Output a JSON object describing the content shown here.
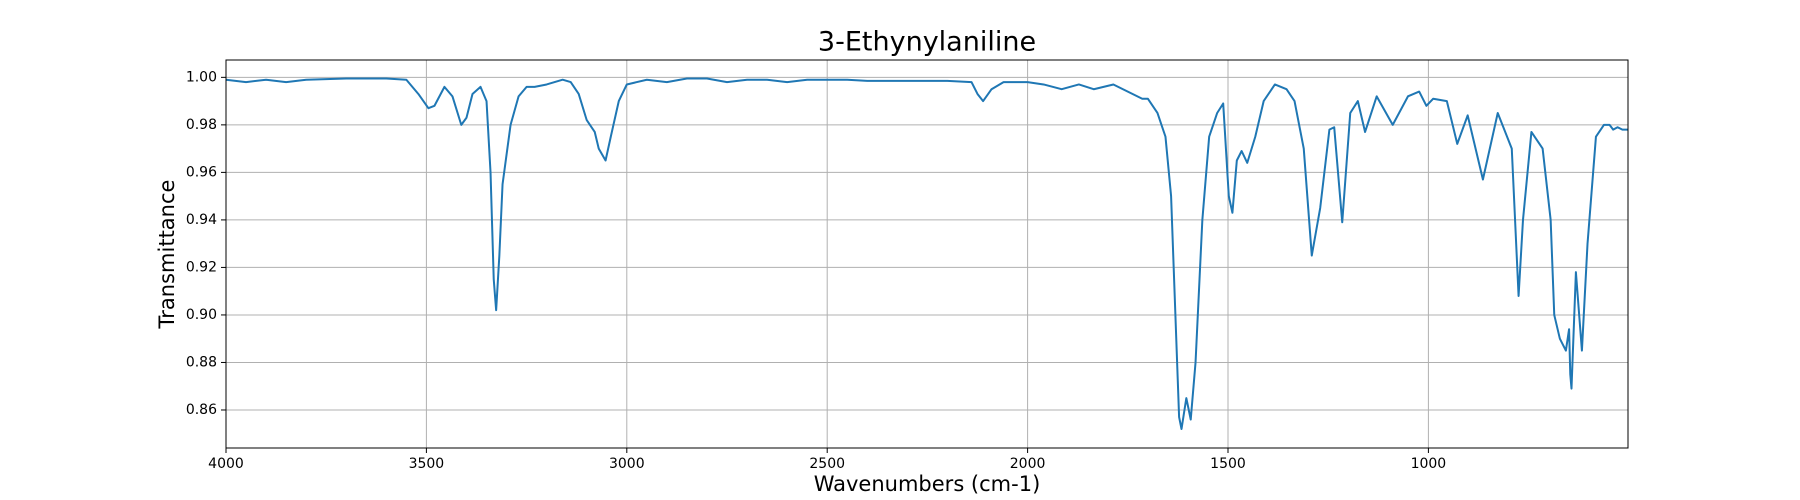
{
  "chart_data": {
    "type": "line",
    "title": "3-Ethynylaniline",
    "x_label": "Wavenumbers (cm-1)",
    "y_label": "Transmittance",
    "color": "#1f77b4",
    "grid": true,
    "xlim": [
      4000,
      502
    ],
    "ylim": [
      0.844,
      1.0073
    ],
    "xticks": [
      4000,
      3500,
      3000,
      2500,
      2000,
      1500,
      1000
    ],
    "yticks": [
      0.86,
      0.88,
      {
        "value": 0.9,
        "label": "0.90"
      },
      0.92,
      0.94,
      0.96,
      0.98,
      {
        "value": 1,
        "label": "1.00"
      }
    ],
    "x": [
      4000,
      3950,
      3900,
      3850,
      3800,
      3700,
      3600,
      3550,
      3520,
      3495,
      3480,
      3455,
      3435,
      3413,
      3400,
      3385,
      3365,
      3350,
      3340,
      3332,
      3326,
      3318,
      3310,
      3290,
      3270,
      3250,
      3230,
      3200,
      3160,
      3140,
      3120,
      3100,
      3080,
      3070,
      3053,
      3040,
      3020,
      3000,
      2950,
      2900,
      2850,
      2800,
      2750,
      2700,
      2650,
      2600,
      2550,
      2500,
      2450,
      2400,
      2300,
      2200,
      2140,
      2125,
      2111,
      2090,
      2060,
      2000,
      1960,
      1915,
      1872,
      1835,
      1786,
      1714,
      1700,
      1676,
      1656,
      1642,
      1622,
      1616,
      1604,
      1593,
      1581,
      1564,
      1547,
      1527,
      1512,
      1498,
      1489,
      1478,
      1466,
      1452,
      1432,
      1411,
      1383,
      1354,
      1334,
      1311,
      1291,
      1270,
      1247,
      1235,
      1215,
      1195,
      1176,
      1158,
      1129,
      1089,
      1051,
      1023,
      1005,
      988,
      954,
      928,
      902,
      864,
      827,
      792,
      775,
      764,
      743,
      715,
      695,
      686,
      672,
      657,
      649,
      646,
      643,
      632,
      617,
      603,
      582,
      562,
      548,
      539,
      528,
      516,
      502
    ],
    "values": [
      0.999,
      0.998,
      0.999,
      0.998,
      0.999,
      0.9995,
      0.9995,
      0.999,
      0.993,
      0.987,
      0.988,
      0.996,
      0.992,
      0.98,
      0.983,
      0.993,
      0.996,
      0.99,
      0.96,
      0.915,
      0.902,
      0.925,
      0.955,
      0.98,
      0.992,
      0.996,
      0.996,
      0.997,
      0.999,
      0.998,
      0.993,
      0.982,
      0.977,
      0.97,
      0.965,
      0.975,
      0.99,
      0.997,
      0.999,
      0.998,
      0.9995,
      0.9995,
      0.998,
      0.999,
      0.999,
      0.998,
      0.999,
      0.999,
      0.999,
      0.9985,
      0.9985,
      0.9985,
      0.998,
      0.993,
      0.99,
      0.995,
      0.998,
      0.998,
      0.997,
      0.995,
      0.997,
      0.995,
      0.997,
      0.991,
      0.991,
      0.985,
      0.975,
      0.95,
      0.857,
      0.852,
      0.865,
      0.856,
      0.88,
      0.94,
      0.975,
      0.985,
      0.989,
      0.95,
      0.943,
      0.965,
      0.969,
      0.964,
      0.975,
      0.99,
      0.997,
      0.995,
      0.99,
      0.97,
      0.925,
      0.945,
      0.978,
      0.979,
      0.939,
      0.985,
      0.99,
      0.977,
      0.992,
      0.98,
      0.992,
      0.994,
      0.988,
      0.991,
      0.99,
      0.972,
      0.984,
      0.957,
      0.985,
      0.97,
      0.908,
      0.94,
      0.977,
      0.97,
      0.94,
      0.9,
      0.89,
      0.885,
      0.894,
      0.875,
      0.869,
      0.918,
      0.885,
      0.93,
      0.975,
      0.98,
      0.98,
      0.978,
      0.979,
      0.978,
      0.978
    ]
  }
}
